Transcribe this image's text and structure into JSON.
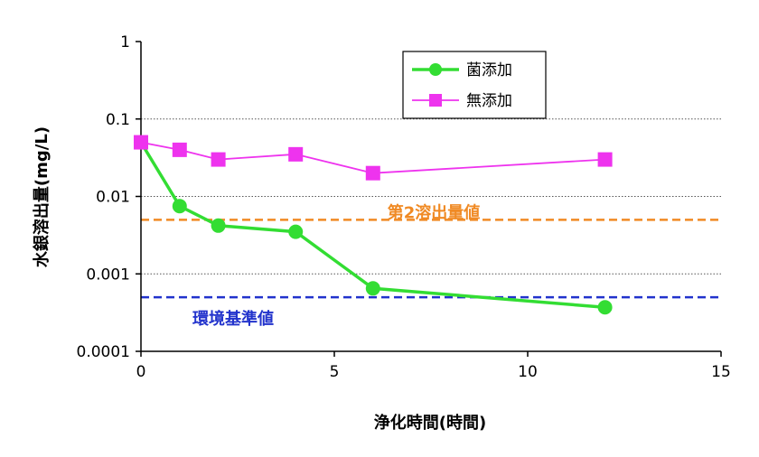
{
  "chart_data": {
    "type": "line",
    "xlabel": "浄化時間(時間)",
    "ylabel": "水銀溶出量(mg/L)",
    "xlim": [
      0,
      15
    ],
    "ylim": [
      0.0001,
      1
    ],
    "yscale": "log",
    "xticks": [
      0,
      5,
      10,
      15
    ],
    "xtick_labels": [
      "0",
      "5",
      "10",
      "15"
    ],
    "yticks": [
      1,
      0.1,
      0.01,
      0.001,
      0.0001
    ],
    "ytick_labels": [
      "1",
      "0.1",
      "0.01",
      "0.001",
      "0.0001"
    ],
    "grid": "horizontal-dotted",
    "legend_position": "top-center",
    "series": [
      {
        "name": "菌添加",
        "color": "#33dd33",
        "marker": "circle",
        "x": [
          0,
          1,
          2,
          4,
          6,
          12
        ],
        "values": [
          0.05,
          0.0075,
          0.0042,
          0.0035,
          0.00065,
          0.00037
        ]
      },
      {
        "name": "無添加",
        "color": "#ee33ee",
        "marker": "square",
        "x": [
          0,
          1,
          2,
          4,
          6,
          12
        ],
        "values": [
          0.05,
          0.04,
          0.03,
          0.035,
          0.02,
          0.03
        ]
      }
    ],
    "reference_lines": [
      {
        "label": "第2溶出量値",
        "value": 0.005,
        "color": "#f08a24",
        "style": "dashed"
      },
      {
        "label": "環境基準値",
        "value": 0.0005,
        "color": "#2233cc",
        "style": "dashed"
      }
    ]
  }
}
